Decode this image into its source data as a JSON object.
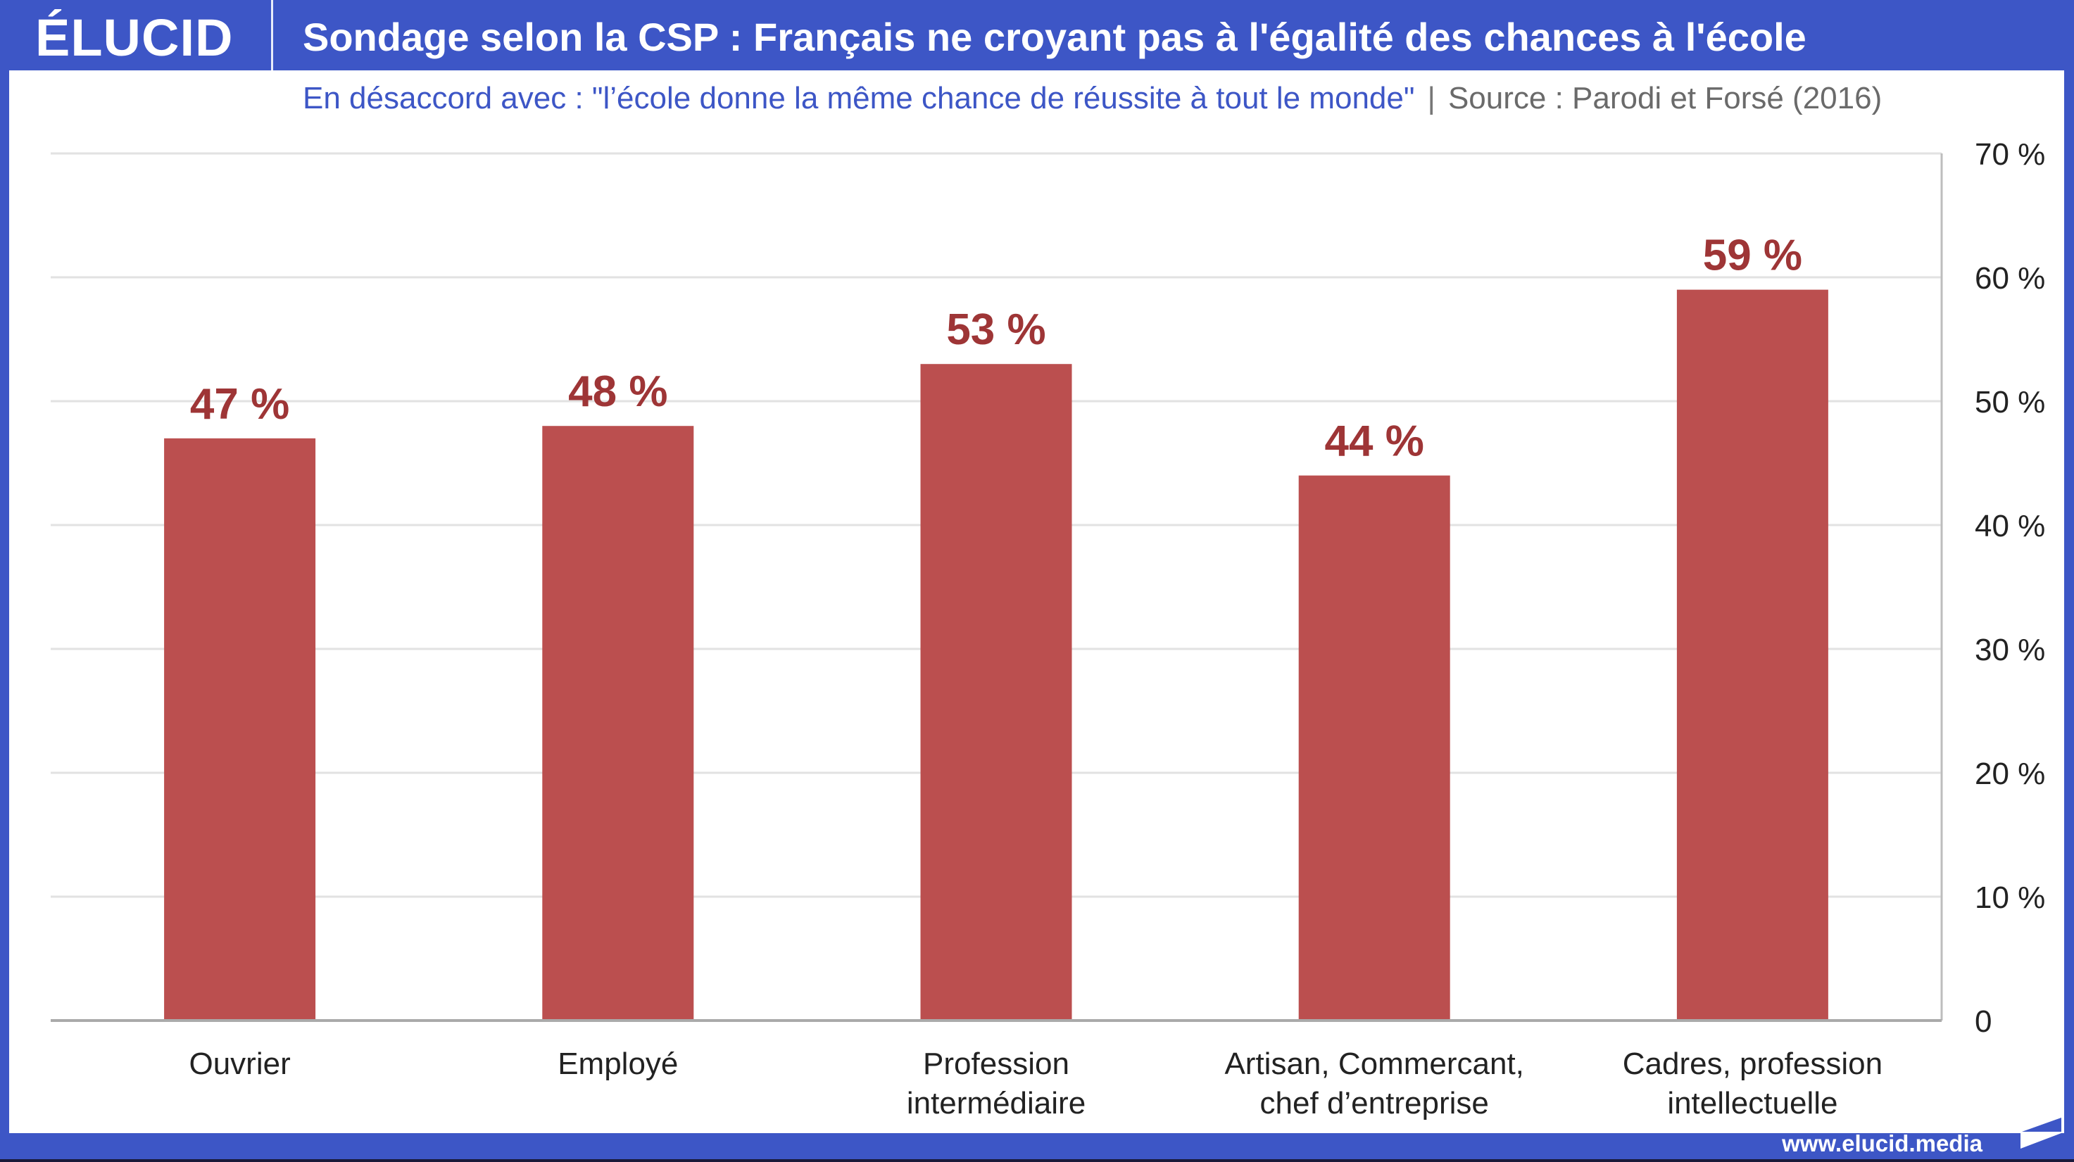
{
  "brand": {
    "logo": "ÉLUCID",
    "url": "www.elucid.media",
    "color": "#3d56c6"
  },
  "header": {
    "title": "Sondage selon la CSP : Français ne croyant pas à l'égalité des chances à l'école"
  },
  "subtitle": {
    "question": "En désaccord avec : \"l’école donne la même chance de réussite à tout le monde\"",
    "separator": "|",
    "source": "Source : Parodi et Forsé (2016)"
  },
  "chart_data": {
    "type": "bar",
    "title": "Sondage selon la CSP : Français ne croyant pas à l'égalité des chances à l'école",
    "xlabel": "",
    "ylabel": "",
    "categories": [
      [
        "Ouvrier"
      ],
      [
        "Employé"
      ],
      [
        "Profession",
        "intermédiaire"
      ],
      [
        "Artisan, Commercant,",
        "chef d’entreprise"
      ],
      [
        "Cadres, profession",
        "intellectuelle"
      ]
    ],
    "values": [
      47,
      48,
      53,
      44,
      59
    ],
    "value_labels": [
      "47 %",
      "48 %",
      "53 %",
      "44 %",
      "59 %"
    ],
    "ylim": [
      0,
      70
    ],
    "yticks": [
      0,
      10,
      20,
      30,
      40,
      50,
      60,
      70
    ],
    "ytick_labels": [
      "0",
      "10 %",
      "20 %",
      "30 %",
      "40 %",
      "50 %",
      "60 %",
      "70 %"
    ],
    "y_axis_side": "right",
    "grid": true,
    "legend": "none",
    "bar_color": "#bb4f4f",
    "label_color": "#9e3536"
  }
}
